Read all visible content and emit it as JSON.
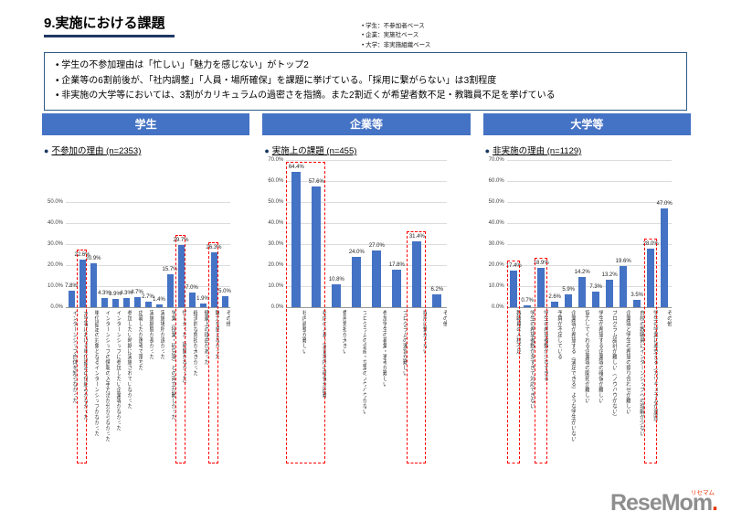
{
  "page": {
    "title": "9.実施における課題",
    "base_notes": [
      "• 学生：不参加者ベース",
      "• 企業：実施社ベース",
      "• 大学：非実施組織ベース"
    ],
    "summary_bullets": [
      "• 学生の不参加理由は「忙しい」「魅力を感じない」がトップ2",
      "• 企業等の6割前後が、「社内調整」「人員・場所確保」を課題に挙げている。「採用に繋がらない」は3割程度",
      "• 非実施の大学等においては、3割がカリキュラムの過密さを指摘。また2割近くが希望者数不足・教職員不足を挙げている"
    ],
    "logo": {
      "brand": "ReseMom",
      "dot": ".",
      "ruby": "リセマム"
    }
  },
  "colors": {
    "accent_blue": "#4472C4",
    "bar_blue": "#4472C4",
    "title_underline": "#1F3864",
    "summary_border": "#2E5A88",
    "highlight_red": "#FF0000",
    "logo_gray": "#8E8E8E",
    "logo_red": "#E8380D"
  },
  "chart_data": [
    {
      "type": "bar",
      "header": "学生",
      "bullet": "●",
      "subtitle": "不参加の理由 (n=2353)",
      "xlabel": "",
      "ylabel": "",
      "ylim": [
        0,
        50
      ],
      "yticks": [
        "50.0%",
        "40.0%",
        "30.0%",
        "20.0%",
        "10.0%",
        "0.0%"
      ],
      "grid": true,
      "legend": "none",
      "categories": [
        "インターンシップ自体を知らなかった",
        "大学等における単位認定の仕組みがなかった",
        "単位認定の対象となるインターンシップがなかった",
        "インターンシップの情報の入手方法が分からなかった",
        "インターンシップに参加したい企業等がなかった",
        "参加したい時期に実施されていなかった",
        "応募したが選考で落ちた",
        "実施期間が長かった",
        "実施場所が遠かった",
        "学業（授業・研究等）との両立が難しかった",
        "忙しかった（時間がなかった）",
        "経済的な負担が大きかった",
        "健康上の理由があった",
        "魅力を感じなかった",
        "その他"
      ],
      "values": [
        7.8,
        22.6,
        20.9,
        4.3,
        3.9,
        4.3,
        4.7,
        2.7,
        1.4,
        15.7,
        29.7,
        7.0,
        1.9,
        26.3,
        5.0
      ],
      "value_labels": [
        "7.8%",
        "22.6%",
        "20.9%",
        "4.3%",
        "3.9%",
        "4.3%",
        "4.7%",
        "2.7%",
        "1.4%",
        "15.7%",
        "29.7%",
        "7.0%",
        "1.9%",
        "26.3%",
        "5.0%"
      ],
      "highlight_spans": [
        [
          1,
          1
        ],
        [
          10,
          10
        ],
        [
          13,
          13
        ]
      ]
    },
    {
      "type": "bar",
      "header": "企業等",
      "bullet": "●",
      "subtitle": "実施上の課題 (n=455)",
      "xlabel": "",
      "ylabel": "",
      "ylim": [
        0,
        70
      ],
      "yticks": [
        "70.0%",
        "60.0%",
        "50.0%",
        "40.0%",
        "30.0%",
        "20.0%",
        "10.0%",
        "0.0%"
      ],
      "grid": true,
      "legend": "none",
      "categories": [
        "社内調整が難しい",
        "社内の人員・実習場所の確保が困難",
        "費用負担が大きい",
        "プログラムの企画・立案のノウハウがない",
        "参加学生の募集・選考が難しい",
        "プログラムの運営が難しい",
        "採用に繋がらない",
        "その他"
      ],
      "values": [
        64.4,
        57.6,
        10.8,
        24.0,
        27.0,
        17.8,
        31.4,
        6.2
      ],
      "value_labels": [
        "64.4%",
        "57.6%",
        "10.8%",
        "24.0%",
        "27.0%",
        "17.8%",
        "31.4%",
        "6.2%"
      ],
      "highlight_spans": [
        [
          0,
          1
        ],
        [
          6,
          6
        ]
      ]
    },
    {
      "type": "bar",
      "header": "大学等",
      "bullet": "●",
      "subtitle": "非実施の理由 (n=1129)",
      "xlabel": "",
      "ylabel": "",
      "ylim": [
        0,
        70
      ],
      "yticks": [
        "70.0%",
        "60.0%",
        "50.0%",
        "40.0%",
        "30.0%",
        "20.0%",
        "10.0%",
        "0.0%"
      ],
      "grid": true,
      "legend": "none",
      "categories": [
        "教職員の人材不足",
        "学生の希望者数が多すぎて対応できない",
        "学生の希望者数が少なすぎる",
        "予算が不足している",
        "企業等が希望する（満足できる）ような学生がいない",
        "協力してくれる企業等の開拓が難しい",
        "学生が希望する企業等の確保が難しい",
        "プログラム設計が難しい（ノウハウがない）",
        "企業等と学生の希望の擦り合わせが難しい",
        "自校の教職員にインターンシップへの理解が少ない",
        "学生の学業に差支える（カリキュラムが過密）",
        "その他"
      ],
      "values": [
        17.4,
        0.7,
        18.9,
        2.6,
        5.9,
        14.2,
        7.3,
        13.2,
        19.6,
        3.5,
        28.0,
        47.0
      ],
      "value_labels": [
        "17.4%",
        "0.7%",
        "18.9%",
        "2.6%",
        "5.9%",
        "14.2%",
        "7.3%",
        "13.2%",
        "19.6%",
        "3.5%",
        "28.0%",
        "47.0%"
      ],
      "highlight_spans": [
        [
          0,
          0
        ],
        [
          2,
          2
        ],
        [
          10,
          10
        ]
      ]
    }
  ]
}
